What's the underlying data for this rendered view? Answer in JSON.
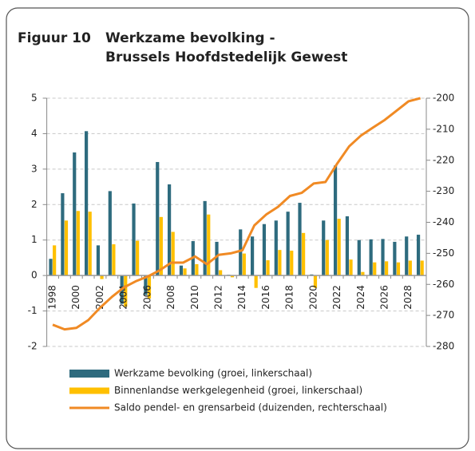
{
  "chart_data": {
    "type": "bar_line",
    "figure_label": "Figuur 10",
    "title_lines": [
      "Werkzame bevolking -",
      "Brussels Hoofdstedelijk Gewest"
    ],
    "categories": [
      "1998",
      null,
      "2000",
      null,
      "2002",
      null,
      "2004",
      null,
      "2006",
      null,
      "2008",
      null,
      "2010",
      null,
      "2012",
      null,
      "2014",
      null,
      "2016",
      null,
      "2018",
      null,
      "2020",
      null,
      "2022",
      null,
      "2024",
      null,
      "2026",
      null,
      "2028",
      null
    ],
    "series": [
      {
        "name": "Werkzame bevolking (groei, linkerschaal)",
        "type": "bar",
        "color": "#2e6b7e",
        "values": [
          0.47,
          2.32,
          3.47,
          4.07,
          0.85,
          2.38,
          -0.8,
          2.03,
          -0.55,
          3.2,
          2.57,
          0.28,
          0.97,
          2.1,
          0.95,
          0.02,
          1.3,
          1.1,
          1.45,
          1.55,
          1.8,
          2.05,
          0.03,
          1.55,
          3.1,
          1.67,
          1.0,
          1.02,
          1.03,
          0.95,
          1.1,
          1.15
        ]
      },
      {
        "name": "Binnenlandse werkgelegenheid (groei, linkerschaal)",
        "type": "bar",
        "color": "#ffc000",
        "values": [
          0.85,
          1.55,
          1.82,
          1.8,
          -0.1,
          0.88,
          -0.88,
          0.98,
          -0.65,
          1.65,
          1.23,
          0.2,
          0.32,
          1.72,
          0.15,
          -0.05,
          0.62,
          -0.35,
          0.43,
          0.72,
          0.7,
          1.2,
          -0.35,
          1.0,
          1.6,
          0.45,
          0.1,
          0.37,
          0.4,
          0.37,
          0.42,
          0.42
        ]
      },
      {
        "name": "Saldo pendel- en grensarbeid (duizenden, rechterschaal)",
        "type": "line",
        "axis": "y2",
        "color": "#f08a24",
        "values": [
          -273,
          -274.5,
          -274,
          -271.5,
          -267.5,
          -264,
          -261,
          -259,
          -257.5,
          -255.5,
          -253,
          -253,
          -251,
          -253.5,
          -250.5,
          -250,
          -249,
          -241,
          -237.5,
          -235,
          -231.5,
          -230.5,
          -227.5,
          -227,
          -221,
          -215.5,
          -212,
          -209.5,
          -207,
          -204,
          -201,
          -200
        ]
      }
    ],
    "ylim": [
      -2,
      5
    ],
    "yticks": [
      -2,
      -1,
      0,
      1,
      2,
      3,
      4,
      5
    ],
    "y2lim": [
      -280,
      -200
    ],
    "y2ticks": [
      -280,
      -270,
      -260,
      -250,
      -240,
      -230,
      -220,
      -210,
      -200
    ],
    "grid": true
  }
}
